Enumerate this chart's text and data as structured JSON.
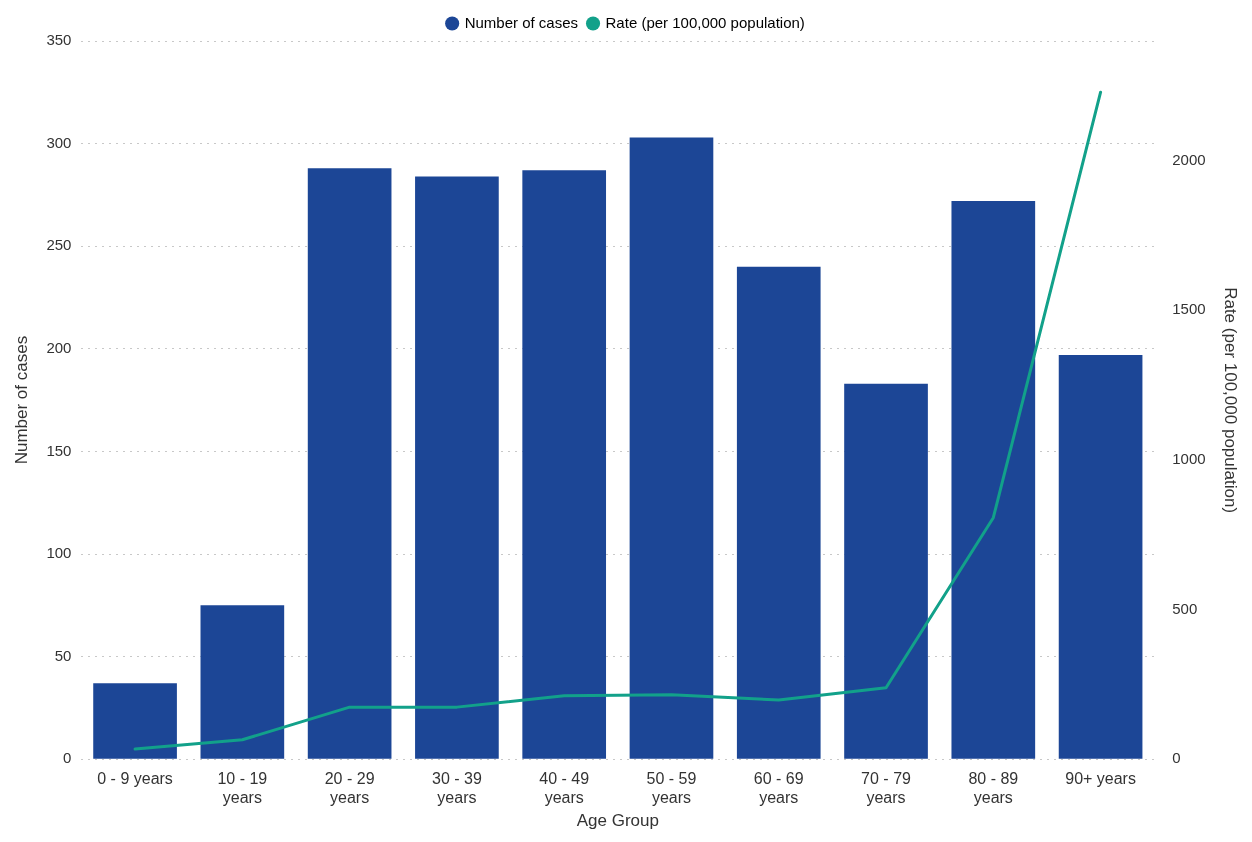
{
  "chart_data": {
    "type": "bar",
    "xlabel": "Age Group",
    "ylabel": "Number of cases",
    "y2label": "Rate (per 100,000 population)",
    "categories": [
      "0 - 9 years",
      "10 - 19 years",
      "20 - 29 years",
      "30 - 39 years",
      "40 - 49 years",
      "50 - 59 years",
      "60 - 69 years",
      "70 - 79 years",
      "80 - 89 years",
      "90+ years"
    ],
    "series": [
      {
        "name": "Number of cases",
        "color": "#1c4696",
        "values": [
          37,
          75,
          288,
          284,
          287,
          303,
          240,
          183,
          272,
          197
        ]
      },
      {
        "name": "Rate (per 100,000 population)",
        "type": "line",
        "axis": "y2",
        "color": "#12a18a",
        "marker": "none",
        "line_style": "solid",
        "values": [
          34,
          65,
          174,
          174,
          212,
          215,
          198,
          239,
          807,
          2229
        ]
      }
    ],
    "ylim": [
      0,
      350
    ],
    "yticks": [
      0,
      50,
      100,
      150,
      200,
      250,
      300,
      350
    ],
    "y2lim": [
      0,
      2400
    ],
    "y2ticks": [
      0,
      500,
      1000,
      1500,
      2000
    ],
    "grid": "y",
    "legend": "top"
  }
}
